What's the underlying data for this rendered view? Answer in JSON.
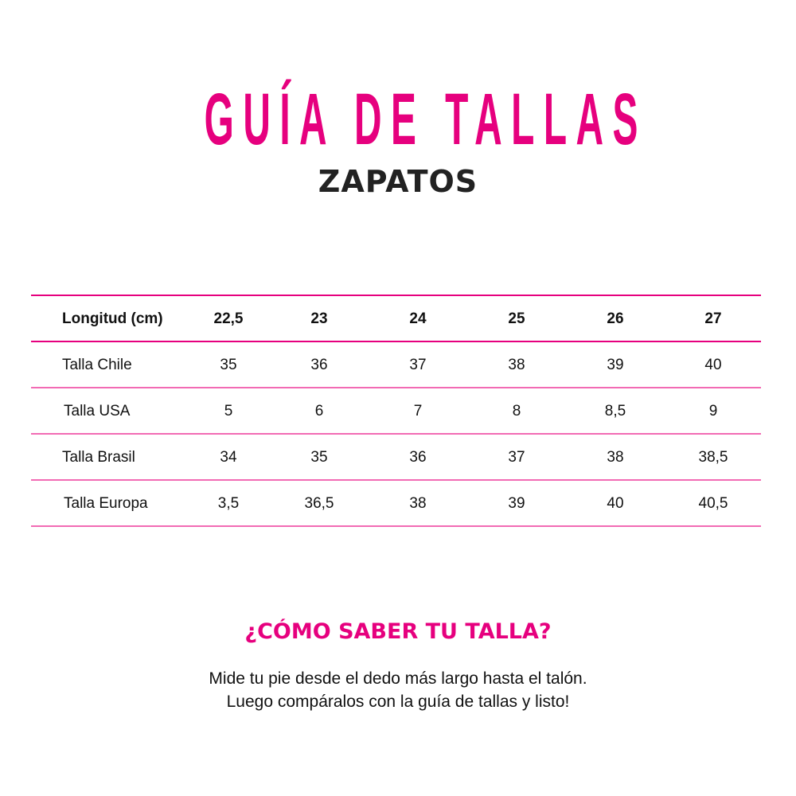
{
  "header": {
    "title": "GUÍA DE TALLAS",
    "subtitle": "ZAPATOS"
  },
  "colors": {
    "accent": "#e6007e",
    "divider": "#f26bb4",
    "text": "#111111"
  },
  "table": {
    "header": [
      "Longitud (cm)",
      "22,5",
      "23",
      "24",
      "25",
      "26",
      "27"
    ],
    "rows": [
      [
        "Talla Chile",
        "35",
        "36",
        "37",
        "38",
        "39",
        "40"
      ],
      [
        "Talla USA",
        "5",
        "6",
        "7",
        "8",
        "8,5",
        "9"
      ],
      [
        "Talla Brasil",
        "34",
        "35",
        "36",
        "37",
        "38",
        "38,5"
      ],
      [
        "Talla Europa",
        "3,5",
        "36,5",
        "38",
        "39",
        "40",
        "40,5"
      ]
    ]
  },
  "help": {
    "heading": "¿CÓMO SABER TU TALLA?",
    "lines": [
      "Mide tu pie desde el dedo más largo hasta el talón.",
      "Luego compáralos con la guía de tallas y listo!"
    ]
  }
}
